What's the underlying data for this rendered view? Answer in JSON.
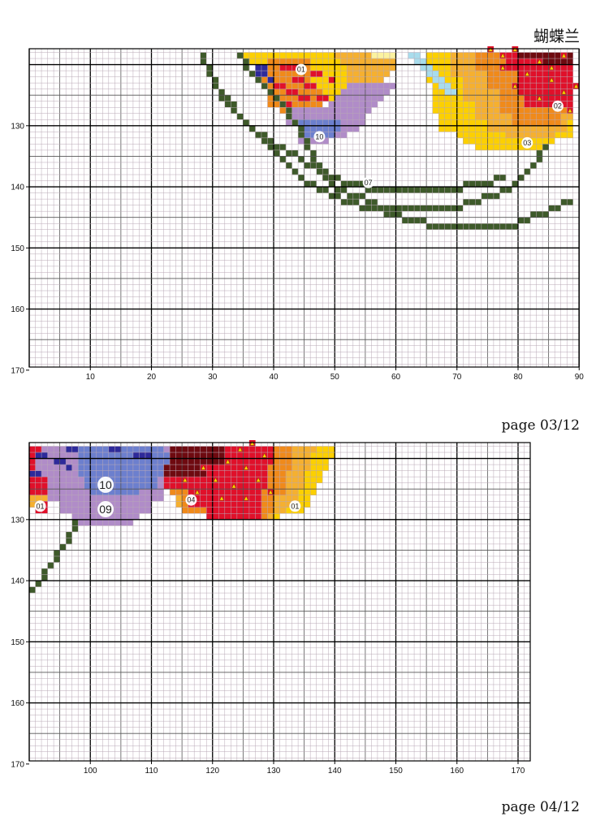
{
  "title": "蝴蝶兰",
  "pages": [
    {
      "label": "page 03/12",
      "x_ticks": [
        "10",
        "20",
        "30",
        "40",
        "50",
        "60",
        "70",
        "80",
        "90"
      ],
      "y_ticks": [
        "130",
        "140",
        "150",
        "160",
        "170"
      ],
      "symbols": [
        {
          "text": "01",
          "col": 44.5,
          "row": 121.3
        },
        {
          "text": "02",
          "col": 86.5,
          "row": 127.3
        },
        {
          "text": "10",
          "col": 47.5,
          "row": 132.3
        },
        {
          "text": "03",
          "col": 81.5,
          "row": 133.3
        },
        {
          "text": "07",
          "col": 55.5,
          "row": 139.8
        }
      ]
    },
    {
      "label": "page 04/12",
      "x_ticks": [
        "100",
        "110",
        "120",
        "130",
        "140",
        "150",
        "160",
        "170"
      ],
      "y_ticks": [
        "130",
        "140",
        "150",
        "160",
        "170"
      ],
      "symbols": [
        {
          "text": "10",
          "col": 102.5,
          "row": 124.8
        },
        {
          "text": "04",
          "col": 116.5,
          "row": 127.3
        },
        {
          "text": "01",
          "col": 91.8,
          "row": 128.3
        },
        {
          "text": "09",
          "col": 102.5,
          "row": 128.8
        },
        {
          "text": "01",
          "col": 133.5,
          "row": 128.3
        }
      ]
    }
  ],
  "colors": {
    "grid_minor": "#b9a8b6",
    "grid_mid": "#555555",
    "grid_major": "#000000",
    "stitch_green": "#3e5a2a",
    "dark_red": "#6e0a10",
    "red": "#e0102a",
    "orange": "#f08a1a",
    "light_orange": "#f5b030",
    "yellow": "#fcd000",
    "pale_yellow": "#fbf2a0",
    "lavender": "#b08cc8",
    "blue": "#6c7fce",
    "indigo": "#2e2a9a",
    "light_blue": "#a8dcec"
  }
}
